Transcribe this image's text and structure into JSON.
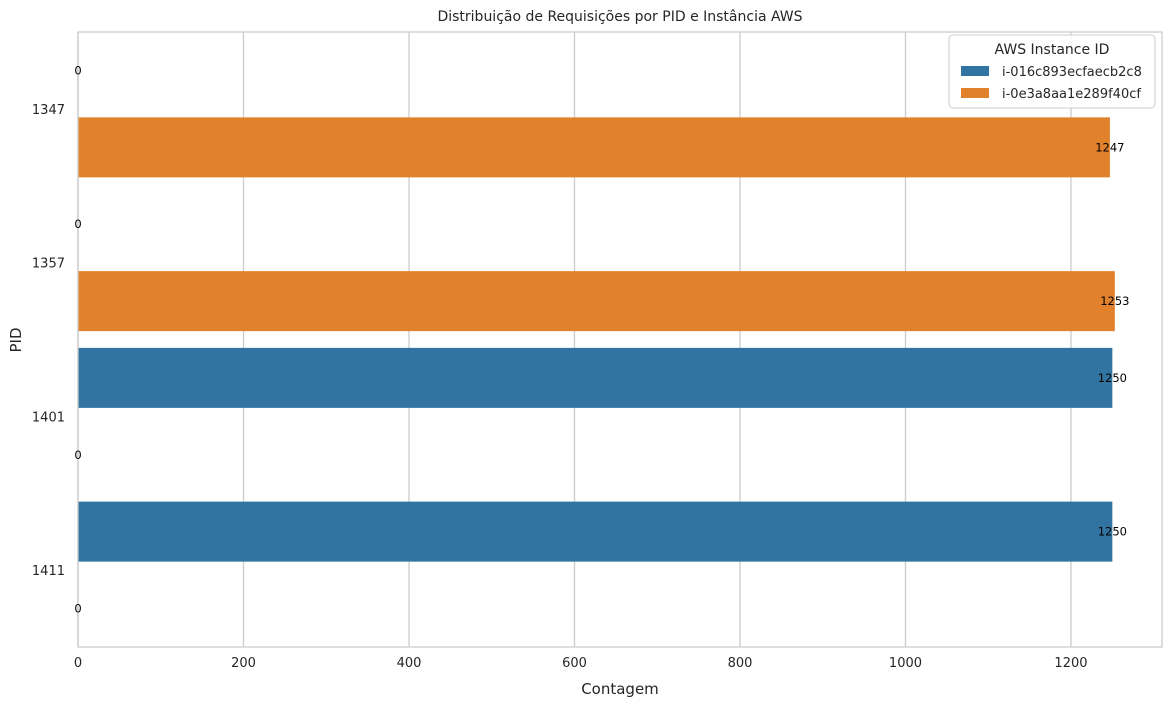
{
  "chart_data": {
    "type": "bar",
    "orientation": "horizontal",
    "title": "Distribuição de Requisições por PID e Instância AWS",
    "xlabel": "Contagem",
    "ylabel": "PID",
    "xlim": [
      0,
      1310
    ],
    "xticks": [
      0,
      200,
      400,
      600,
      800,
      1000,
      1200
    ],
    "grid": true,
    "legend_placement": "top-right",
    "legend_title": "AWS Instance ID",
    "categories": [
      "1347",
      "1357",
      "1401",
      "1411"
    ],
    "series": [
      {
        "name": "i-016c893ecfaecb2c8",
        "color": "#3274a1",
        "values": [
          0,
          0,
          1250,
          1250
        ],
        "labels": [
          "0",
          "0",
          "1250",
          "1250"
        ]
      },
      {
        "name": "i-0e3a8aa1e289f40cf",
        "color": "#e1812c",
        "values": [
          1247,
          1253,
          0,
          0
        ],
        "labels": [
          "1247",
          "1253",
          "0",
          "0"
        ]
      }
    ]
  }
}
